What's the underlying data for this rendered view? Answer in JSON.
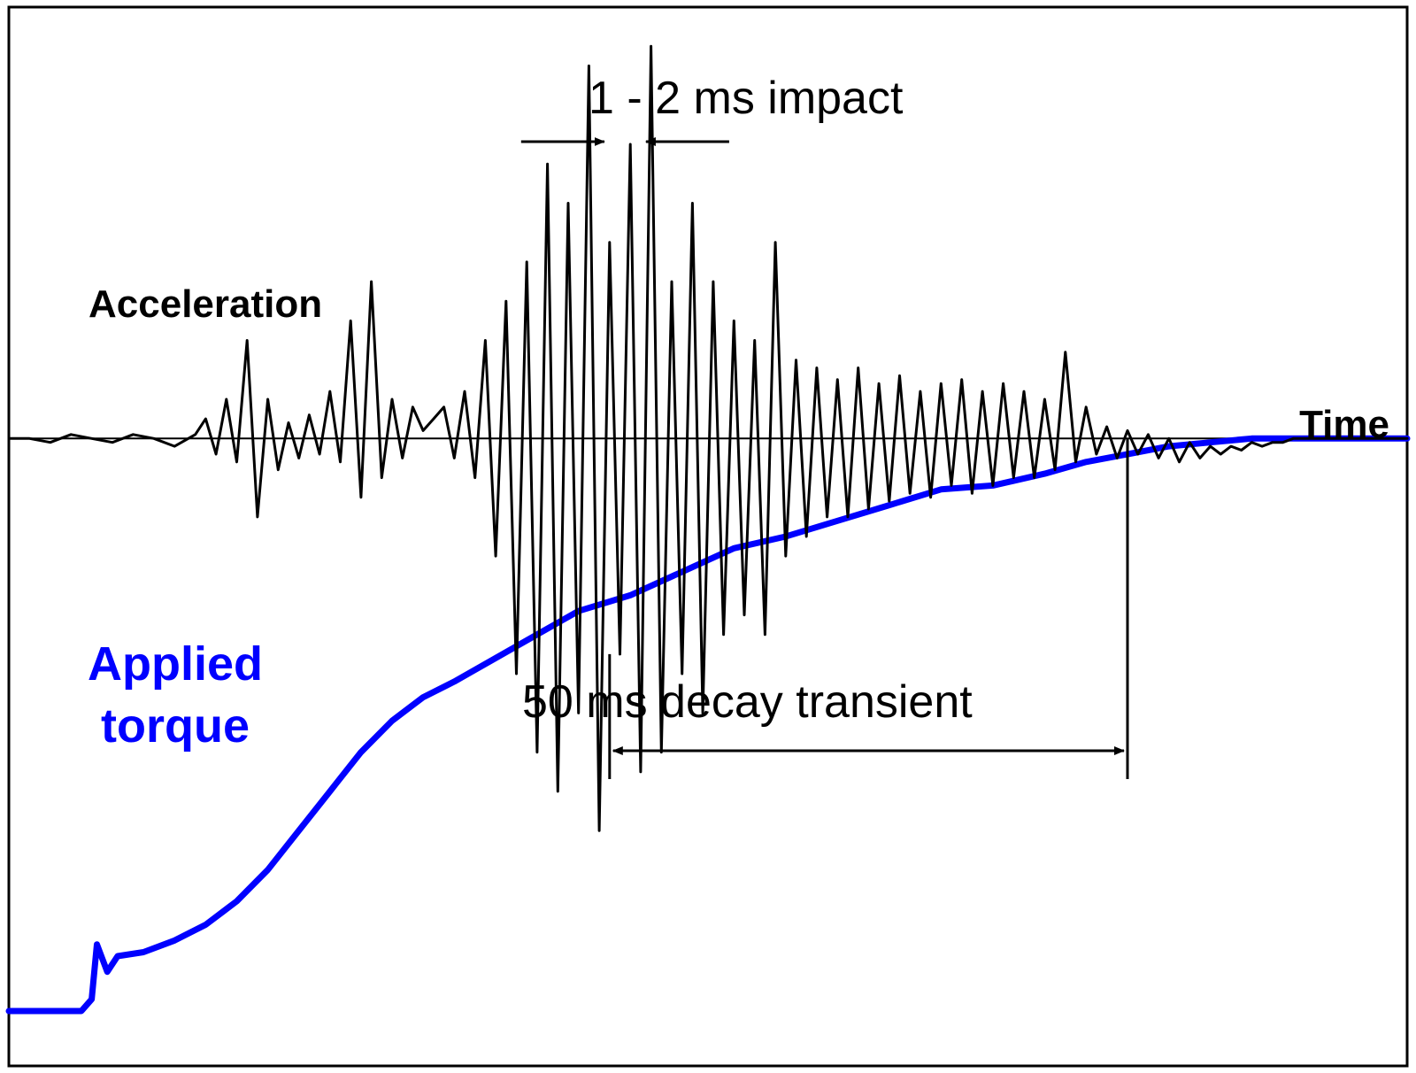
{
  "chart_data": {
    "type": "line",
    "title": "",
    "xlabel": "Time",
    "ylabel": "",
    "xlim": [
      -20,
      115
    ],
    "ylim": [
      -1.6,
      1.1
    ],
    "x_unit": "ms",
    "colors": {
      "acceleration": "#000000",
      "torque": "#0000ff",
      "frame": "#000000"
    },
    "series": [
      {
        "name": "Acceleration",
        "color": "#000000",
        "points": [
          [
            -20,
            0.0
          ],
          [
            -18,
            0.0
          ],
          [
            -16,
            -0.01
          ],
          [
            -14,
            0.01
          ],
          [
            -12,
            0.0
          ],
          [
            -10,
            -0.01
          ],
          [
            -8,
            0.01
          ],
          [
            -6,
            0.0
          ],
          [
            -4,
            -0.02
          ],
          [
            -2,
            0.01
          ],
          [
            -1,
            0.05
          ],
          [
            0,
            -0.04
          ],
          [
            1,
            0.1
          ],
          [
            2,
            -0.06
          ],
          [
            3,
            0.25
          ],
          [
            4,
            -0.2
          ],
          [
            5,
            0.1
          ],
          [
            6,
            -0.08
          ],
          [
            7,
            0.04
          ],
          [
            8,
            -0.05
          ],
          [
            9,
            0.06
          ],
          [
            10,
            -0.04
          ],
          [
            11,
            0.12
          ],
          [
            12,
            -0.06
          ],
          [
            13,
            0.3
          ],
          [
            14,
            -0.15
          ],
          [
            15,
            0.4
          ],
          [
            16,
            -0.1
          ],
          [
            17,
            0.1
          ],
          [
            18,
            -0.05
          ],
          [
            19,
            0.08
          ],
          [
            20,
            0.02
          ],
          [
            21,
            0.05
          ],
          [
            22,
            0.08
          ],
          [
            23,
            -0.05
          ],
          [
            24,
            0.12
          ],
          [
            25,
            -0.1
          ],
          [
            26,
            0.25
          ],
          [
            27,
            -0.3
          ],
          [
            28,
            0.35
          ],
          [
            29,
            -0.6
          ],
          [
            30,
            0.45
          ],
          [
            31,
            -0.8
          ],
          [
            32,
            0.7
          ],
          [
            33,
            -0.9
          ],
          [
            34,
            0.6
          ],
          [
            35,
            -0.7
          ],
          [
            36,
            0.95
          ],
          [
            37,
            -1.0
          ],
          [
            38,
            0.5
          ],
          [
            39,
            -0.55
          ],
          [
            40,
            0.75
          ],
          [
            41,
            -0.85
          ],
          [
            42,
            1.0
          ],
          [
            43,
            -0.8
          ],
          [
            44,
            0.4
          ],
          [
            45,
            -0.6
          ],
          [
            46,
            0.6
          ],
          [
            47,
            -0.7
          ],
          [
            48,
            0.4
          ],
          [
            49,
            -0.5
          ],
          [
            50,
            0.3
          ],
          [
            51,
            -0.45
          ],
          [
            52,
            0.25
          ],
          [
            53,
            -0.5
          ],
          [
            54,
            0.5
          ],
          [
            55,
            -0.3
          ],
          [
            56,
            0.2
          ],
          [
            57,
            -0.25
          ],
          [
            58,
            0.18
          ],
          [
            59,
            -0.2
          ],
          [
            60,
            0.15
          ],
          [
            61,
            -0.2
          ],
          [
            62,
            0.18
          ],
          [
            63,
            -0.18
          ],
          [
            64,
            0.14
          ],
          [
            65,
            -0.16
          ],
          [
            66,
            0.16
          ],
          [
            67,
            -0.14
          ],
          [
            68,
            0.12
          ],
          [
            69,
            -0.15
          ],
          [
            70,
            0.14
          ],
          [
            71,
            -0.12
          ],
          [
            72,
            0.15
          ],
          [
            73,
            -0.14
          ],
          [
            74,
            0.12
          ],
          [
            75,
            -0.12
          ],
          [
            76,
            0.14
          ],
          [
            77,
            -0.1
          ],
          [
            78,
            0.12
          ],
          [
            79,
            -0.1
          ],
          [
            80,
            0.1
          ],
          [
            81,
            -0.08
          ],
          [
            82,
            0.22
          ],
          [
            83,
            -0.06
          ],
          [
            84,
            0.08
          ],
          [
            85,
            -0.04
          ],
          [
            86,
            0.03
          ],
          [
            87,
            -0.05
          ],
          [
            88,
            0.02
          ],
          [
            89,
            -0.04
          ],
          [
            90,
            0.01
          ],
          [
            91,
            -0.05
          ],
          [
            92,
            0.0
          ],
          [
            93,
            -0.06
          ],
          [
            94,
            -0.01
          ],
          [
            95,
            -0.05
          ],
          [
            96,
            -0.02
          ],
          [
            97,
            -0.04
          ],
          [
            98,
            -0.02
          ],
          [
            99,
            -0.03
          ],
          [
            100,
            -0.01
          ],
          [
            101,
            -0.02
          ],
          [
            102,
            -0.01
          ],
          [
            103,
            -0.01
          ],
          [
            104,
            0.0
          ],
          [
            106,
            0.0
          ],
          [
            108,
            0.0
          ],
          [
            110,
            0.0
          ],
          [
            112,
            0.0
          ],
          [
            115,
            0.0
          ]
        ]
      },
      {
        "name": "Applied torque",
        "color": "#0000ff",
        "points": [
          [
            -20,
            -1.46
          ],
          [
            -13,
            -1.46
          ],
          [
            -12,
            -1.43
          ],
          [
            -11.5,
            -1.29
          ],
          [
            -10.5,
            -1.36
          ],
          [
            -9.5,
            -1.32
          ],
          [
            -7,
            -1.31
          ],
          [
            -4,
            -1.28
          ],
          [
            -1,
            -1.24
          ],
          [
            2,
            -1.18
          ],
          [
            5,
            -1.1
          ],
          [
            8,
            -1.0
          ],
          [
            11,
            -0.9
          ],
          [
            14,
            -0.8
          ],
          [
            17,
            -0.72
          ],
          [
            20,
            -0.66
          ],
          [
            23,
            -0.62
          ],
          [
            27,
            -0.56
          ],
          [
            31,
            -0.5
          ],
          [
            35,
            -0.44
          ],
          [
            40,
            -0.4
          ],
          [
            45,
            -0.34
          ],
          [
            50,
            -0.28
          ],
          [
            55,
            -0.25
          ],
          [
            60,
            -0.21
          ],
          [
            65,
            -0.17
          ],
          [
            70,
            -0.13
          ],
          [
            75,
            -0.12
          ],
          [
            80,
            -0.09
          ],
          [
            84,
            -0.06
          ],
          [
            88,
            -0.04
          ],
          [
            92,
            -0.02
          ],
          [
            96,
            -0.01
          ],
          [
            100,
            0.0
          ],
          [
            105,
            0.0
          ],
          [
            110,
            0.0
          ],
          [
            115,
            0.0
          ]
        ]
      }
    ],
    "annotations": [
      {
        "id": "impact",
        "text": "1 - 2 ms impact",
        "x_start": 38,
        "x_end": 41
      },
      {
        "id": "decay",
        "text": "50 ms decay transient",
        "x_start": 38,
        "x_end": 88
      }
    ],
    "labels": {
      "acceleration": "Acceleration",
      "torque_line1": "Applied",
      "torque_line2": "torque",
      "time": "Time"
    }
  }
}
